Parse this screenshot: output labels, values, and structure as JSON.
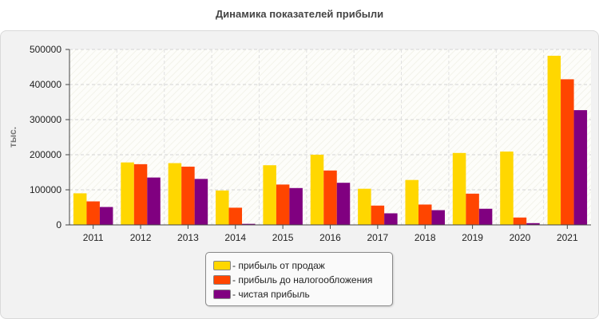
{
  "chart_data": {
    "type": "bar",
    "title": "Динамика показателей прибыли",
    "ylabel": "тыс.",
    "xlabel": "",
    "ylim": [
      0,
      500000
    ],
    "yticks": [
      0,
      100000,
      200000,
      300000,
      400000,
      500000
    ],
    "grid": true,
    "legend_position": "bottom-center",
    "categories": [
      "2011",
      "2012",
      "2013",
      "2014",
      "2015",
      "2016",
      "2017",
      "2018",
      "2019",
      "2020",
      "2021"
    ],
    "series": [
      {
        "name": "- прибыль от продаж",
        "color": "#FFD700",
        "values": [
          90000,
          178000,
          176000,
          98000,
          170000,
          200000,
          103000,
          128000,
          205000,
          209000,
          482000
        ]
      },
      {
        "name": "- прибыль до налогообложения",
        "color": "#FF4500",
        "values": [
          67000,
          173000,
          166000,
          49000,
          115000,
          155000,
          55000,
          58000,
          89000,
          21000,
          415000
        ]
      },
      {
        "name": "- чистая прибыль",
        "color": "#800080",
        "values": [
          51000,
          135000,
          131000,
          3000,
          105000,
          120000,
          33000,
          42000,
          46000,
          5000,
          327000
        ]
      }
    ]
  }
}
